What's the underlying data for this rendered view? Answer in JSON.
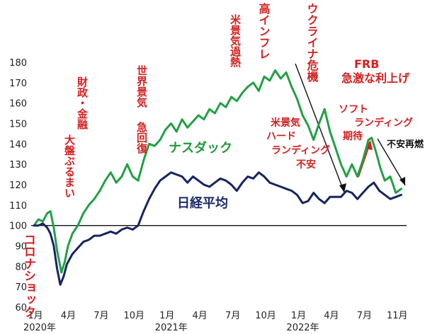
{
  "chart_data": {
    "type": "line",
    "ylim": [
      60,
      180
    ],
    "yticks": [
      60,
      70,
      80,
      90,
      100,
      110,
      120,
      130,
      140,
      150,
      160,
      170,
      180
    ],
    "xlim": [
      0,
      34.5
    ],
    "xticks": [
      {
        "m": 0,
        "label": "1月"
      },
      {
        "m": 3,
        "label": "4月"
      },
      {
        "m": 6,
        "label": "7月"
      },
      {
        "m": 9,
        "label": "10月"
      },
      {
        "m": 12,
        "label": "1月"
      },
      {
        "m": 15,
        "label": "4月"
      },
      {
        "m": 18,
        "label": "7月"
      },
      {
        "m": 21,
        "label": "10月"
      },
      {
        "m": 24,
        "label": "1月"
      },
      {
        "m": 27,
        "label": "4月"
      },
      {
        "m": 30,
        "label": "7月"
      },
      {
        "m": 33,
        "label": "11月"
      }
    ],
    "years": [
      {
        "m": 0,
        "label": "2020年"
      },
      {
        "m": 12,
        "label": "2021年"
      },
      {
        "m": 24,
        "label": "2022年"
      }
    ],
    "baseline": 100,
    "series": [
      {
        "name": "ナスダック",
        "color": "#22a045",
        "points": [
          [
            0,
            100
          ],
          [
            0.4,
            103
          ],
          [
            0.8,
            102
          ],
          [
            1.2,
            106
          ],
          [
            1.5,
            107
          ],
          [
            1.8,
            99
          ],
          [
            2.1,
            88
          ],
          [
            2.5,
            77
          ],
          [
            2.8,
            82
          ],
          [
            3.1,
            90
          ],
          [
            3.5,
            96
          ],
          [
            4,
            100
          ],
          [
            4.5,
            106
          ],
          [
            5,
            110
          ],
          [
            5.5,
            113
          ],
          [
            6,
            117
          ],
          [
            6.5,
            122
          ],
          [
            7,
            126
          ],
          [
            7.5,
            121
          ],
          [
            8,
            124
          ],
          [
            8.5,
            130
          ],
          [
            9,
            124
          ],
          [
            9.5,
            122
          ],
          [
            10,
            132
          ],
          [
            10.5,
            140
          ],
          [
            11,
            139
          ],
          [
            11.5,
            142
          ],
          [
            12,
            147
          ],
          [
            12.5,
            150
          ],
          [
            13,
            146
          ],
          [
            13.5,
            152
          ],
          [
            14,
            148
          ],
          [
            14.5,
            151
          ],
          [
            15,
            154
          ],
          [
            15.5,
            152
          ],
          [
            16,
            157
          ],
          [
            16.5,
            155
          ],
          [
            17,
            160
          ],
          [
            17.5,
            158
          ],
          [
            18,
            163
          ],
          [
            18.5,
            161
          ],
          [
            19,
            165
          ],
          [
            19.5,
            168
          ],
          [
            20,
            170
          ],
          [
            20.5,
            166
          ],
          [
            21,
            173
          ],
          [
            21.5,
            171
          ],
          [
            22,
            176
          ],
          [
            22.5,
            172
          ],
          [
            23,
            175
          ],
          [
            23.5,
            168
          ],
          [
            24,
            162
          ],
          [
            24.5,
            154
          ],
          [
            25,
            149
          ],
          [
            25.5,
            142
          ],
          [
            26,
            150
          ],
          [
            26.5,
            157
          ],
          [
            27,
            146
          ],
          [
            27.5,
            138
          ],
          [
            28,
            130
          ],
          [
            28.5,
            124
          ],
          [
            29,
            130
          ],
          [
            29.5,
            124
          ],
          [
            30,
            132
          ],
          [
            30.5,
            142
          ],
          [
            30.8,
            143
          ],
          [
            31.2,
            136
          ],
          [
            31.6,
            128
          ],
          [
            32,
            122
          ],
          [
            32.5,
            124
          ],
          [
            33,
            116
          ],
          [
            33.5,
            118
          ]
        ]
      },
      {
        "name": "日経平均",
        "color": "#162561",
        "points": [
          [
            0,
            100
          ],
          [
            0.4,
            100
          ],
          [
            0.8,
            101
          ],
          [
            1.2,
            99
          ],
          [
            1.5,
            96
          ],
          [
            1.8,
            90
          ],
          [
            2.1,
            79
          ],
          [
            2.4,
            71
          ],
          [
            2.7,
            75
          ],
          [
            3,
            81
          ],
          [
            3.5,
            86
          ],
          [
            4,
            89
          ],
          [
            4.5,
            92
          ],
          [
            5,
            93
          ],
          [
            5.5,
            95
          ],
          [
            6,
            95
          ],
          [
            6.5,
            96
          ],
          [
            7,
            97
          ],
          [
            7.5,
            96
          ],
          [
            8,
            98
          ],
          [
            8.5,
            99
          ],
          [
            9,
            98
          ],
          [
            9.5,
            100
          ],
          [
            10,
            107
          ],
          [
            10.5,
            113
          ],
          [
            11,
            118
          ],
          [
            11.5,
            122
          ],
          [
            12,
            124
          ],
          [
            12.5,
            126
          ],
          [
            13,
            125
          ],
          [
            13.5,
            124
          ],
          [
            14,
            121
          ],
          [
            14.5,
            124
          ],
          [
            15,
            122
          ],
          [
            15.5,
            120
          ],
          [
            16,
            119
          ],
          [
            16.5,
            121
          ],
          [
            17,
            123
          ],
          [
            17.5,
            122
          ],
          [
            18,
            120
          ],
          [
            18.5,
            117
          ],
          [
            19,
            121
          ],
          [
            19.5,
            124
          ],
          [
            20,
            123
          ],
          [
            20.5,
            126
          ],
          [
            21,
            124
          ],
          [
            21.5,
            121
          ],
          [
            22,
            120
          ],
          [
            22.5,
            119
          ],
          [
            23,
            118
          ],
          [
            23.5,
            117
          ],
          [
            24,
            115
          ],
          [
            24.5,
            111
          ],
          [
            25,
            112
          ],
          [
            25.5,
            116
          ],
          [
            26,
            113
          ],
          [
            26.5,
            111
          ],
          [
            27,
            114
          ],
          [
            27.5,
            114
          ],
          [
            28,
            114
          ],
          [
            28.5,
            117
          ],
          [
            29,
            116
          ],
          [
            29.5,
            113
          ],
          [
            30,
            116
          ],
          [
            30.5,
            119
          ],
          [
            31,
            121
          ],
          [
            31.5,
            117
          ],
          [
            32,
            115
          ],
          [
            32.5,
            113
          ],
          [
            33,
            114
          ],
          [
            33.5,
            115
          ]
        ]
      }
    ],
    "annotations": {
      "corona": "コロナショック",
      "fiscal_1": "財政・金融",
      "fiscal_2": "大盤ぶるまい",
      "recovery_1": "世界景気",
      "recovery_2": "急回復",
      "overheat": "米景気過熱",
      "inflation": "高インフレ",
      "ukraine": "ウクライナ危機",
      "frb_1": "FRB",
      "frb_2": "急激な利上げ",
      "hard_1": "米景気",
      "hard_2": "ハード",
      "hard_3": "ランディング",
      "hard_4": "不安",
      "soft_1": "ソフト",
      "soft_2": "ランディング",
      "soft_3": "期待",
      "unrest": "不安再燃"
    }
  }
}
